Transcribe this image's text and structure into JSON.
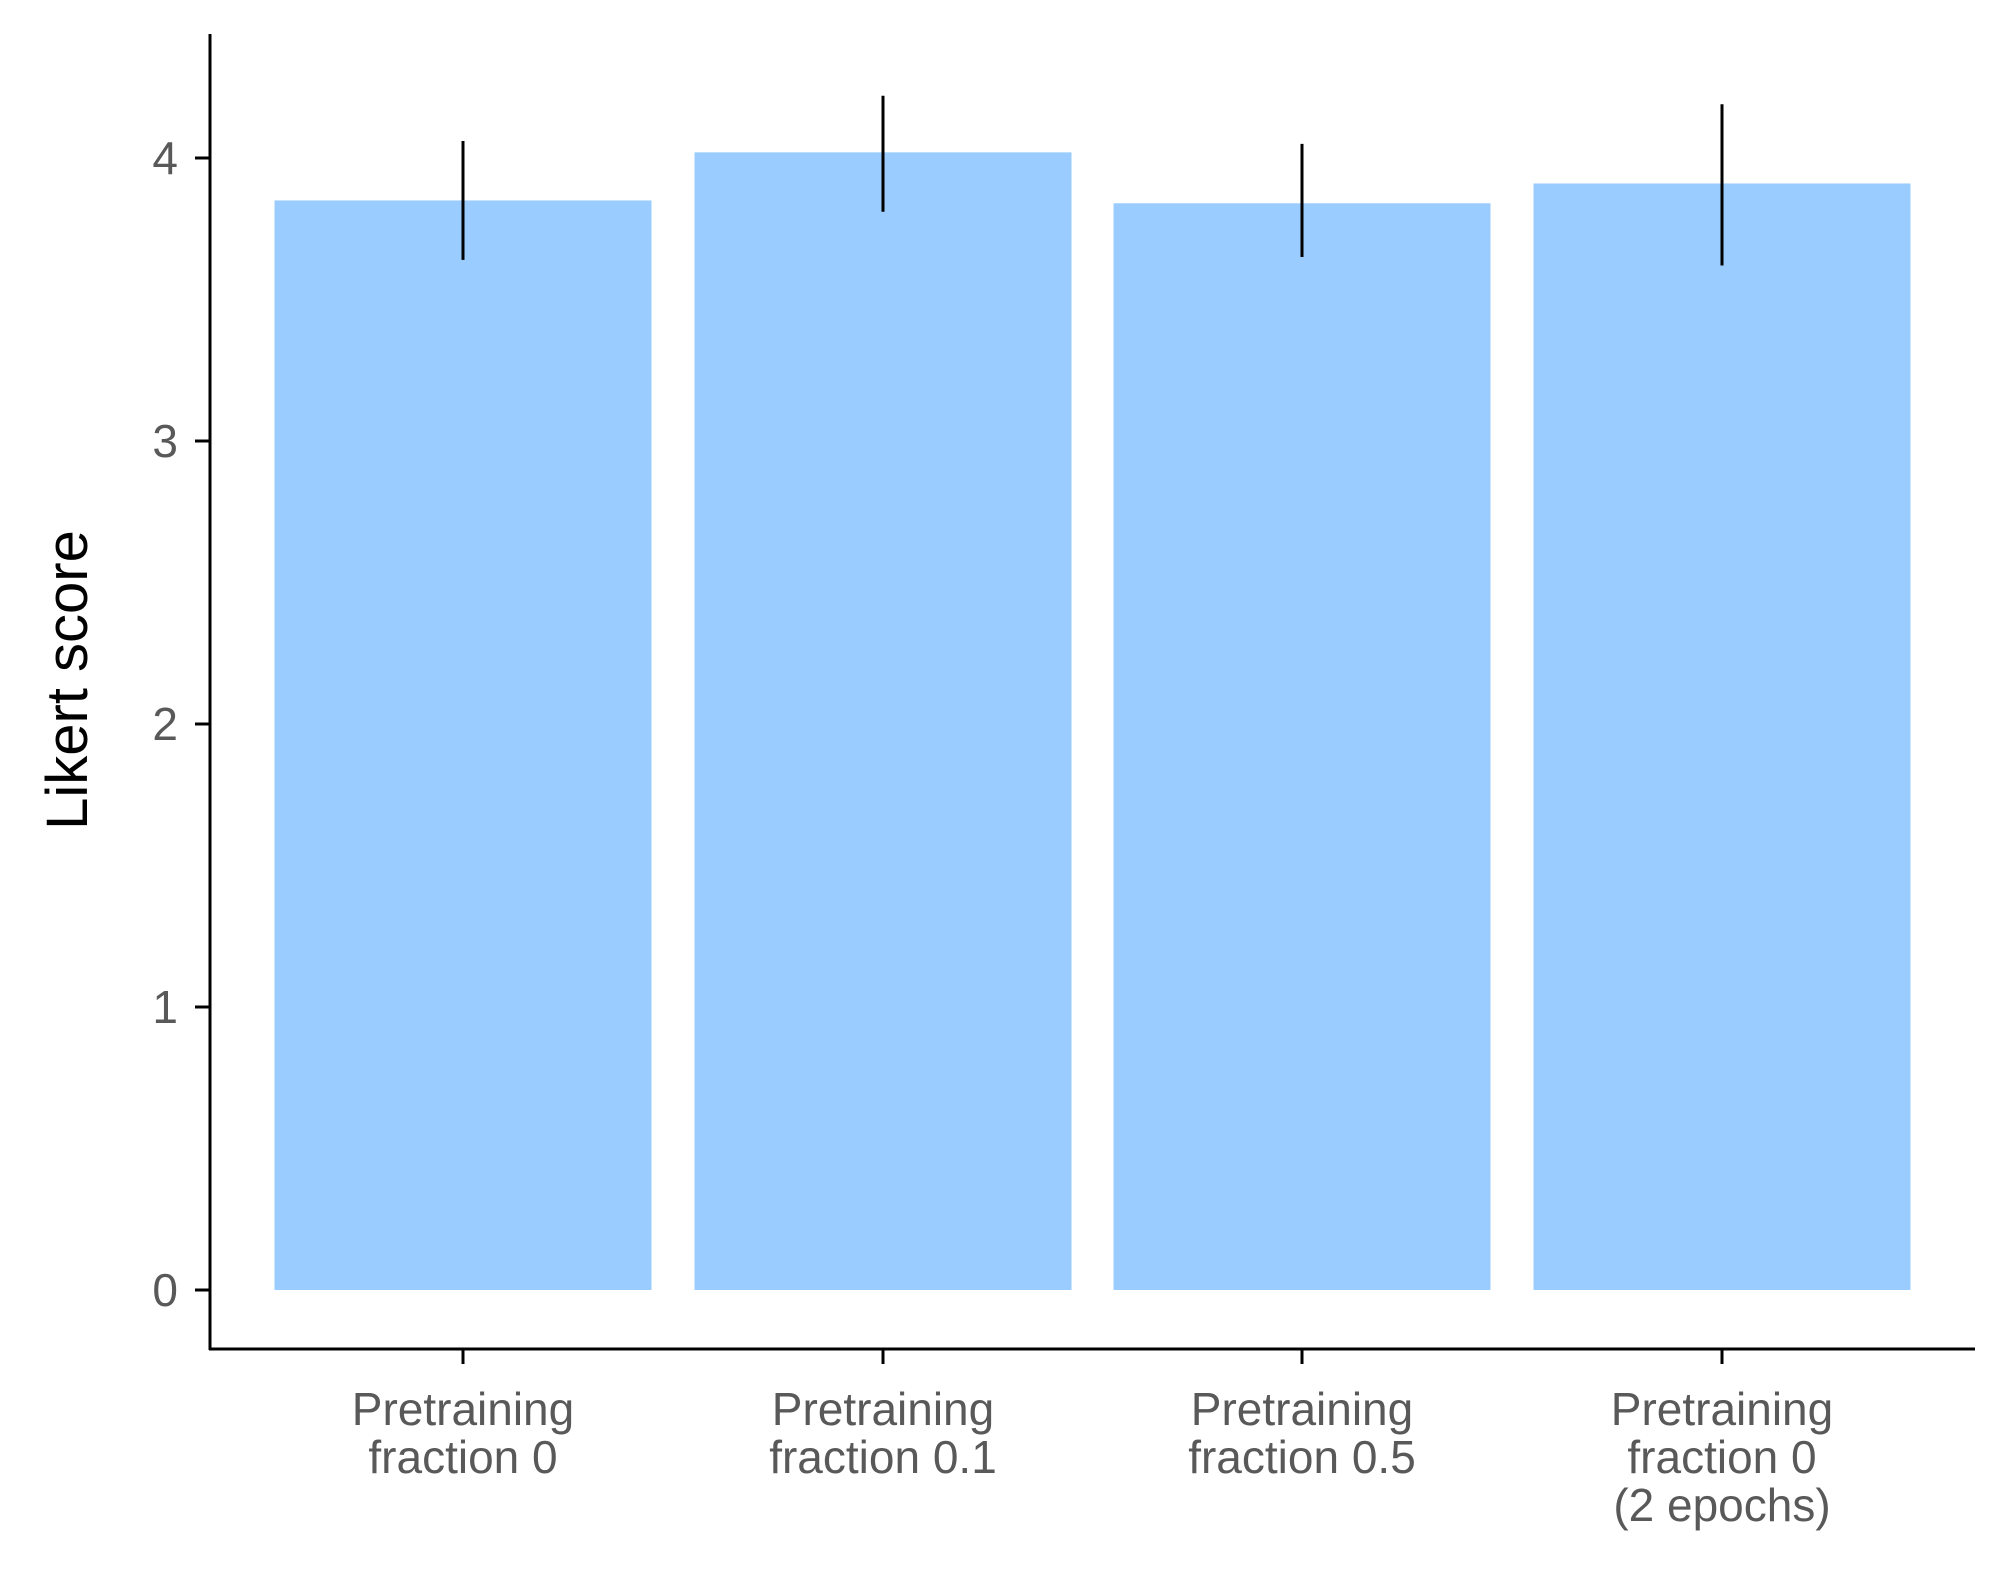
{
  "chart_data": {
    "type": "bar",
    "title": "",
    "xlabel": "",
    "ylabel": "Likert score",
    "categories": [
      [
        "Pretraining",
        "fraction 0"
      ],
      [
        "Pretraining",
        "fraction 0.1"
      ],
      [
        "Pretraining",
        "fraction 0.5"
      ],
      [
        "Pretraining",
        "fraction 0",
        "(2 epochs)"
      ]
    ],
    "values": [
      3.85,
      4.02,
      3.84,
      3.91
    ],
    "error_low": [
      3.64,
      3.81,
      3.65,
      3.62
    ],
    "error_high": [
      4.06,
      4.22,
      4.05,
      4.19
    ],
    "yticks": [
      0,
      1,
      2,
      3,
      4
    ],
    "ylim": [
      -0.21,
      4.45
    ],
    "grid": false,
    "bar_color": "#9ACCFF",
    "error_color": "#000000"
  }
}
